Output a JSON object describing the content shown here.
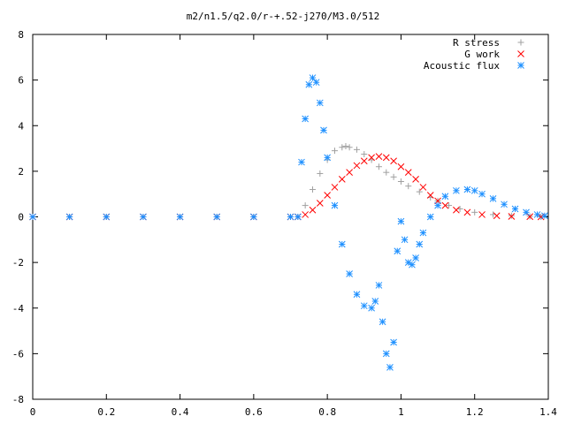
{
  "chart_data": {
    "type": "scatter",
    "title": "m2/n1.5/q2.0/r-+.52-j270/M3.0/512",
    "xlabel": "",
    "ylabel": "",
    "xlim": [
      0,
      1.4
    ],
    "ylim": [
      -8,
      8
    ],
    "x_ticks": [
      "0",
      "0.2",
      "0.4",
      "0.6",
      "0.8",
      "1",
      "1.2",
      "1.4"
    ],
    "y_ticks": [
      "-8",
      "-6",
      "-4",
      "-2",
      "0",
      "2",
      "4",
      "6",
      "8"
    ],
    "grid": false,
    "legend_position": "top-right",
    "series": [
      {
        "name": "R stress",
        "marker": "+",
        "color": "#a0a0a0",
        "x": [
          0.0,
          0.1,
          0.2,
          0.3,
          0.4,
          0.5,
          0.6,
          0.7,
          0.72,
          0.74,
          0.76,
          0.78,
          0.8,
          0.82,
          0.84,
          0.85,
          0.86,
          0.88,
          0.9,
          0.92,
          0.94,
          0.96,
          0.98,
          1.0,
          1.02,
          1.05,
          1.08,
          1.1,
          1.13,
          1.16,
          1.2,
          1.25,
          1.3,
          1.35,
          1.38
        ],
        "y": [
          0,
          0,
          0,
          0,
          0,
          0,
          0,
          0,
          0,
          0.5,
          1.2,
          1.9,
          2.5,
          2.9,
          3.05,
          3.1,
          3.05,
          2.95,
          2.75,
          2.5,
          2.2,
          1.95,
          1.75,
          1.55,
          1.35,
          1.1,
          0.85,
          0.7,
          0.5,
          0.35,
          0.2,
          0.1,
          0.05,
          0.02,
          0
        ]
      },
      {
        "name": "G work",
        "marker": "x",
        "color": "#ff0000",
        "x": [
          0.0,
          0.1,
          0.2,
          0.3,
          0.4,
          0.5,
          0.6,
          0.7,
          0.72,
          0.74,
          0.76,
          0.78,
          0.8,
          0.82,
          0.84,
          0.86,
          0.88,
          0.9,
          0.92,
          0.94,
          0.96,
          0.98,
          1.0,
          1.02,
          1.04,
          1.06,
          1.08,
          1.1,
          1.12,
          1.15,
          1.18,
          1.22,
          1.26,
          1.3,
          1.35,
          1.38
        ],
        "y": [
          0,
          0,
          0,
          0,
          0,
          0,
          0,
          0,
          0,
          0.1,
          0.3,
          0.6,
          0.95,
          1.3,
          1.65,
          1.95,
          2.25,
          2.45,
          2.6,
          2.65,
          2.6,
          2.45,
          2.2,
          1.95,
          1.65,
          1.3,
          0.95,
          0.7,
          0.5,
          0.3,
          0.2,
          0.1,
          0.05,
          0.02,
          0.01,
          0
        ]
      },
      {
        "name": "Acoustic flux",
        "marker": "*",
        "color": "#1e90ff",
        "x": [
          0.0,
          0.1,
          0.2,
          0.3,
          0.4,
          0.5,
          0.6,
          0.7,
          0.72,
          0.73,
          0.74,
          0.75,
          0.76,
          0.77,
          0.78,
          0.79,
          0.8,
          0.82,
          0.84,
          0.86,
          0.88,
          0.9,
          0.92,
          0.93,
          0.94,
          0.95,
          0.96,
          0.97,
          0.98,
          0.99,
          1.0,
          1.01,
          1.02,
          1.03,
          1.04,
          1.05,
          1.06,
          1.08,
          1.1,
          1.12,
          1.15,
          1.18,
          1.2,
          1.22,
          1.25,
          1.28,
          1.31,
          1.34,
          1.37,
          1.39
        ],
        "y": [
          0,
          0,
          0,
          0,
          0,
          0,
          0,
          0,
          0,
          2.4,
          4.3,
          5.8,
          6.1,
          5.9,
          5.0,
          3.8,
          2.6,
          0.5,
          -1.2,
          -2.5,
          -3.4,
          -3.9,
          -4.0,
          -3.7,
          -3.0,
          -4.6,
          -6.0,
          -6.6,
          -5.5,
          -1.5,
          -0.2,
          -1.0,
          -2.0,
          -2.1,
          -1.8,
          -1.2,
          -0.7,
          0.0,
          0.5,
          0.9,
          1.15,
          1.2,
          1.15,
          1.0,
          0.8,
          0.55,
          0.35,
          0.2,
          0.1,
          0.05
        ]
      }
    ]
  }
}
